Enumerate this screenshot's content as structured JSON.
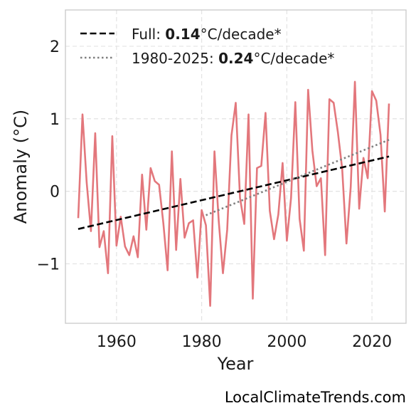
{
  "chart_data": {
    "type": "line",
    "xlabel": "Year",
    "ylabel": "Anomaly (°C)",
    "xlim": [
      1948,
      2028
    ],
    "ylim": [
      -1.82,
      2.5
    ],
    "xticks": [
      1960,
      1980,
      2000,
      2020
    ],
    "yticks": [
      -1,
      0,
      1,
      2
    ],
    "ytick_labels": [
      "−1",
      "0",
      "1",
      "2"
    ],
    "grid": true,
    "legend_position": "top-left",
    "series": [
      {
        "color": "#e3777c",
        "x": [
          1951,
          1952,
          1953,
          1954,
          1955,
          1956,
          1957,
          1958,
          1959,
          1960,
          1961,
          1962,
          1963,
          1964,
          1965,
          1966,
          1967,
          1968,
          1969,
          1970,
          1971,
          1972,
          1973,
          1974,
          1975,
          1976,
          1977,
          1978,
          1979,
          1980,
          1981,
          1982,
          1983,
          1984,
          1985,
          1986,
          1987,
          1988,
          1989,
          1990,
          1991,
          1992,
          1993,
          1994,
          1995,
          1996,
          1997,
          1998,
          1999,
          2000,
          2001,
          2002,
          2003,
          2004,
          2005,
          2006,
          2007,
          2008,
          2009,
          2010,
          2011,
          2012,
          2013,
          2014,
          2015,
          2016,
          2017,
          2018,
          2019,
          2020,
          2021,
          2022,
          2023,
          2024
        ],
        "y": [
          -0.37,
          1.06,
          0.12,
          -0.55,
          0.8,
          -0.77,
          -0.55,
          -1.13,
          0.76,
          -0.75,
          -0.35,
          -0.76,
          -0.88,
          -0.62,
          -0.91,
          0.23,
          -0.53,
          0.32,
          0.14,
          0.09,
          -0.44,
          -1.09,
          0.55,
          -0.81,
          0.17,
          -0.64,
          -0.44,
          -0.4,
          -1.19,
          -0.26,
          -0.47,
          -1.58,
          0.55,
          -0.41,
          -1.13,
          -0.53,
          0.77,
          1.22,
          -0.09,
          -0.45,
          1.06,
          -1.48,
          0.32,
          0.35,
          1.08,
          -0.27,
          -0.66,
          -0.32,
          0.39,
          -0.68,
          -0.09,
          1.23,
          -0.38,
          -0.82,
          1.4,
          0.56,
          0.07,
          0.18,
          -0.88,
          1.27,
          1.22,
          0.81,
          0.31,
          -0.72,
          0.06,
          1.51,
          -0.24,
          0.46,
          0.18,
          1.38,
          1.25,
          0.78,
          -0.28,
          1.21
        ]
      }
    ],
    "trends": [
      {
        "label_prefix": "Full: ",
        "label_value": "0.14",
        "label_suffix": "°C/decade*",
        "style": "dashed",
        "color": "#000000",
        "x": [
          1951,
          2024
        ],
        "y": [
          -0.52,
          0.48
        ]
      },
      {
        "label_prefix": "1980-2025: ",
        "label_value": "0.24",
        "label_suffix": "°C/decade*",
        "style": "dotted",
        "color": "#7f7f7f",
        "x": [
          1981,
          2024
        ],
        "y": [
          -0.33,
          0.71
        ]
      }
    ]
  },
  "watermark": "LocalClimateTrends.com"
}
